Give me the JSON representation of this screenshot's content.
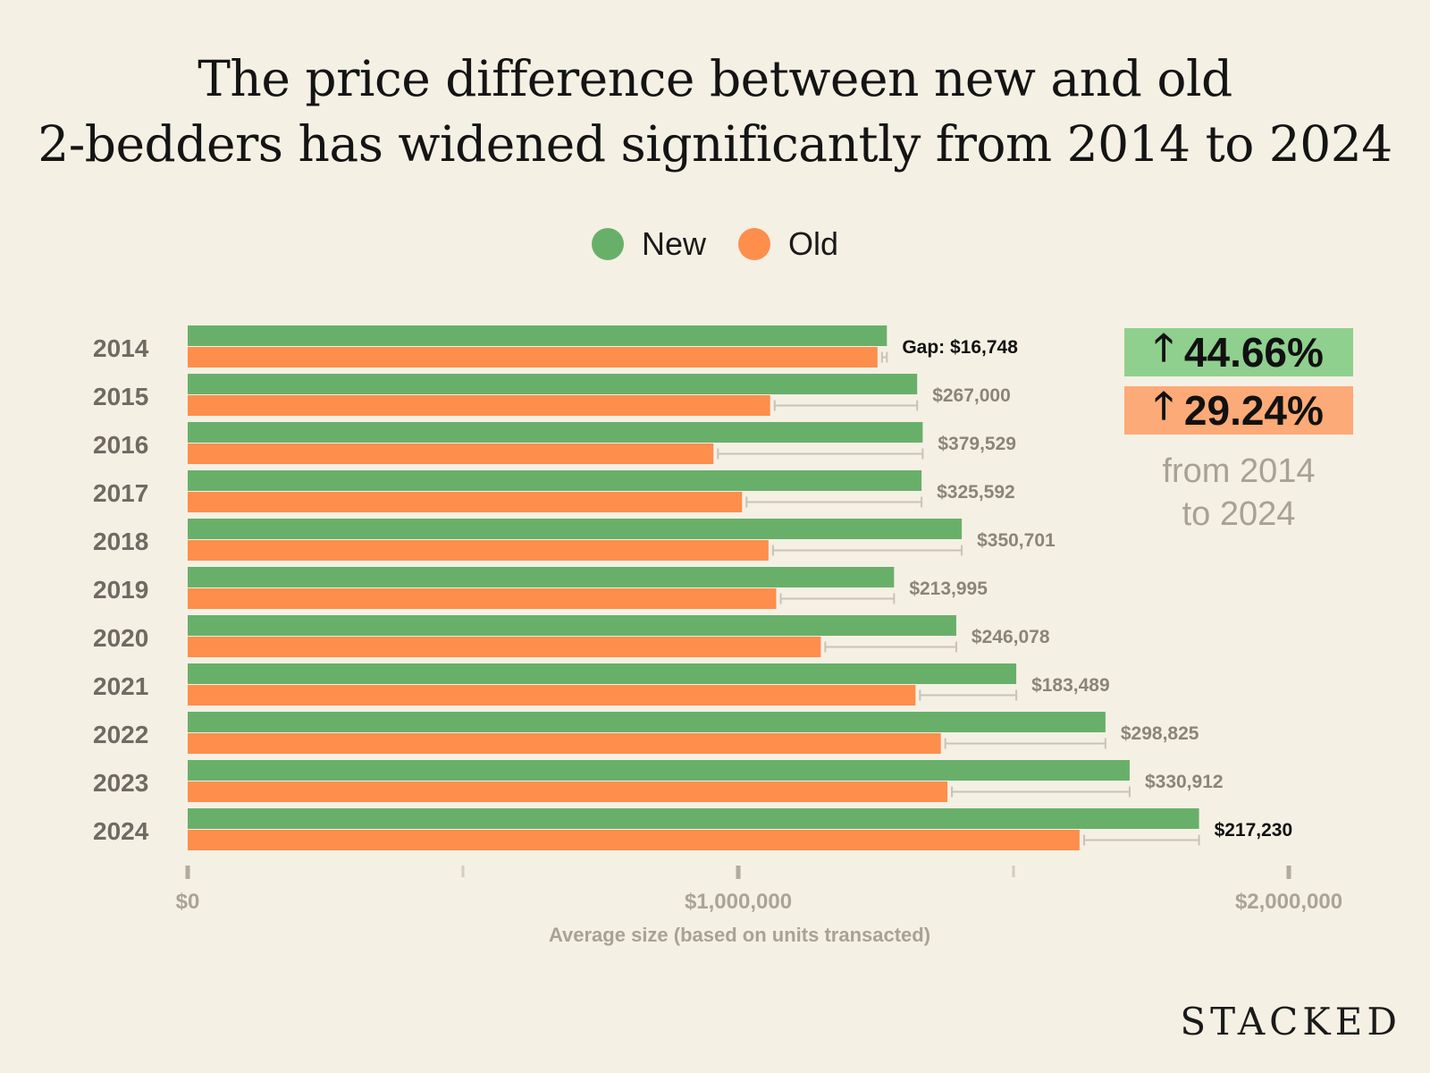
{
  "title_lines": [
    "The price difference between new and old",
    "2-bedders has widened significantly from 2014 to 2024"
  ],
  "legend": [
    {
      "label": "New",
      "color": "#68b06a"
    },
    {
      "label": "Old",
      "color": "#fd8e4c"
    }
  ],
  "badges": {
    "new_change": "44.66%",
    "old_change": "29.24%",
    "from_line1": "from 2014",
    "from_line2": "to 2024"
  },
  "brand": "STACKED",
  "chart_data": {
    "type": "bar",
    "orientation": "horizontal",
    "categories": [
      "2014",
      "2015",
      "2016",
      "2017",
      "2018",
      "2019",
      "2020",
      "2021",
      "2022",
      "2023",
      "2024"
    ],
    "series": [
      {
        "name": "New",
        "color": "#68b06a",
        "values": [
          1270000,
          1325000,
          1335000,
          1333000,
          1406000,
          1283000,
          1396000,
          1505000,
          1667000,
          1711000,
          1837000
        ]
      },
      {
        "name": "Old",
        "color": "#fd8e4c",
        "values": [
          1253000,
          1058000,
          955000,
          1007000,
          1055000,
          1069000,
          1150000,
          1322000,
          1368000,
          1380000,
          1620000
        ]
      }
    ],
    "gap_labels": [
      "Gap: $16,748",
      "$267,000",
      "$379,529",
      "$325,592",
      "$350,701",
      "$213,995",
      "$246,078",
      "$183,489",
      "$298,825",
      "$330,912",
      "$217,230"
    ],
    "gap_label_bold_dark": [
      true,
      false,
      false,
      false,
      false,
      false,
      false,
      false,
      false,
      false,
      true
    ],
    "xlabel": "Average size (based on units transacted)",
    "xlim": [
      0,
      2000000
    ],
    "xticks": [
      0,
      500000,
      1000000,
      1500000,
      2000000
    ],
    "xtick_labels": [
      "$0",
      "",
      "$1,000,000",
      "",
      "$2,000,000"
    ],
    "grid": false,
    "legend_position": "top-center"
  }
}
